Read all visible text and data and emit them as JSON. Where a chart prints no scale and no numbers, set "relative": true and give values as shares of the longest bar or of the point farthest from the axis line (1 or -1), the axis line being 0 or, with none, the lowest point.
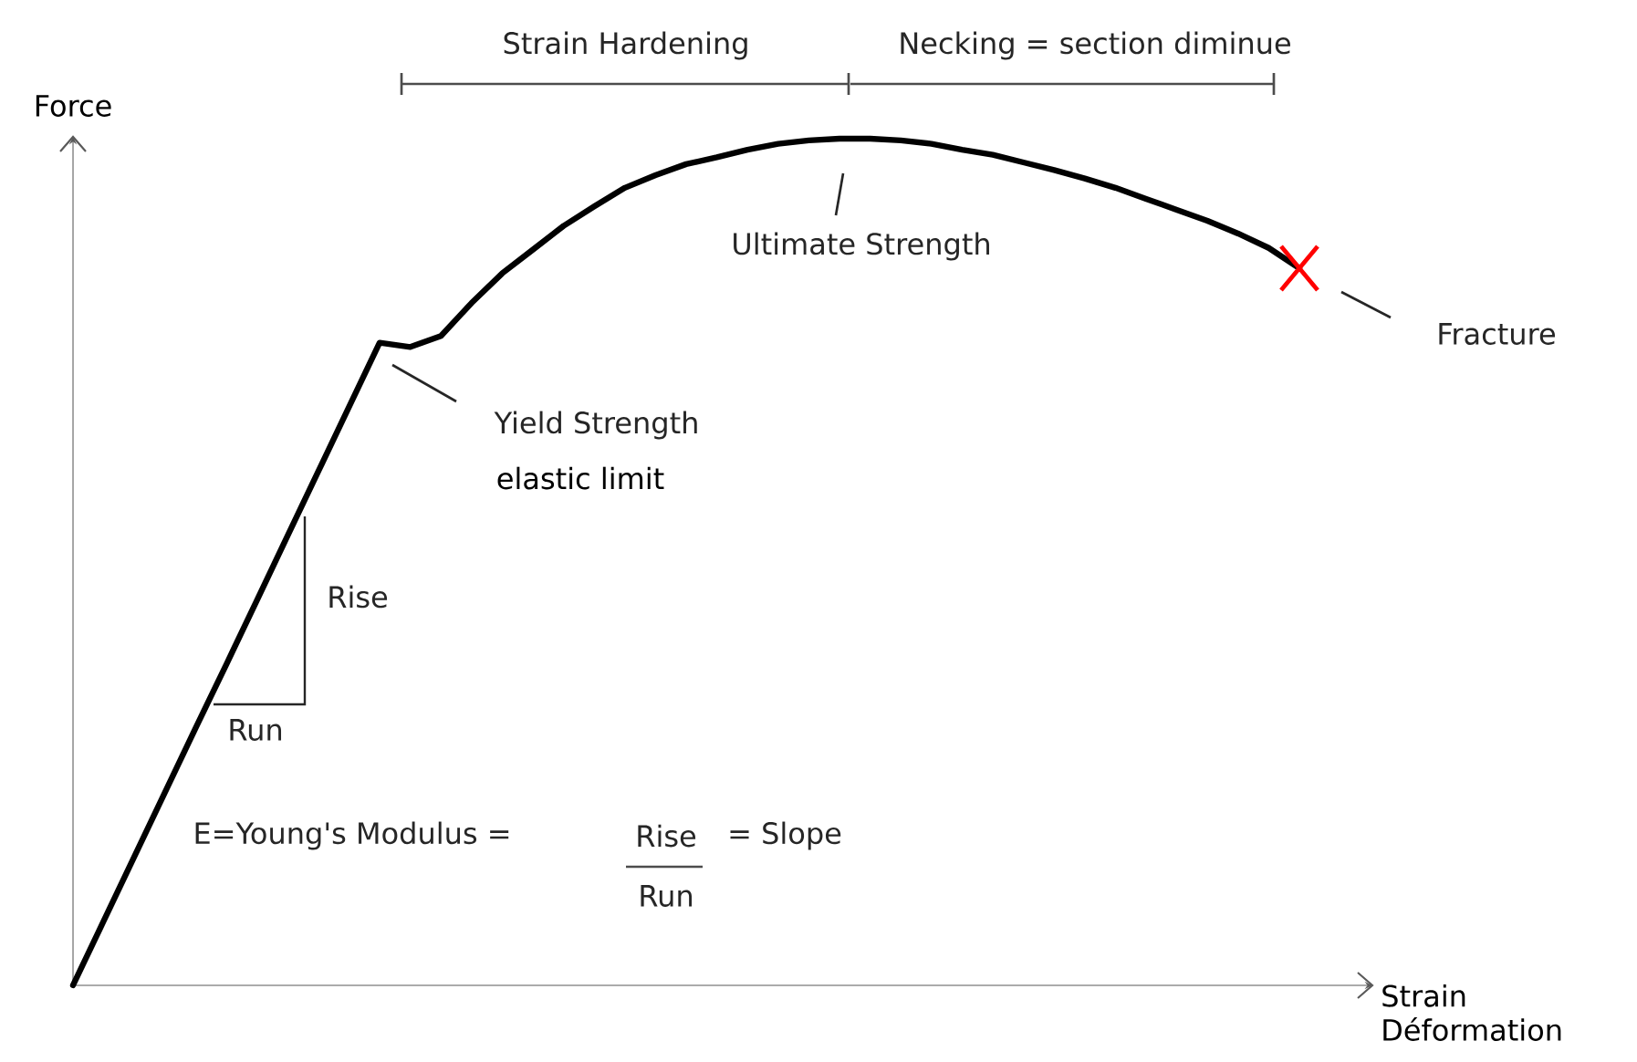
{
  "chart_data": {
    "type": "line",
    "relative": true,
    "xlabel": "Strain Déformation",
    "ylabel": "Force",
    "categories": [
      null,
      null,
      null,
      null,
      null,
      null,
      null,
      null,
      null,
      null,
      null,
      null,
      null,
      null,
      null,
      null,
      null,
      null,
      null,
      null,
      null,
      null,
      null,
      null,
      null,
      null,
      null,
      null,
      null,
      null,
      null,
      null,
      null,
      null,
      null,
      null,
      null,
      null,
      null,
      null,
      null
    ],
    "series": [
      {
        "color": "#000000",
        "values": [
          0,
          0.076,
          0.152,
          0.228,
          0.304,
          0.379,
          0.455,
          0.531,
          0.607,
          0.683,
          0.759,
          0.754,
          0.767,
          0.806,
          0.841,
          0.869,
          0.897,
          0.92,
          0.942,
          0.957,
          0.97,
          0.978,
          0.987,
          0.994,
          0.998,
          1,
          1,
          0.998,
          0.994,
          0.987,
          0.981,
          0.972,
          0.963,
          0.953,
          0.942,
          0.929,
          0.916,
          0.903,
          0.888,
          0.871,
          0.847
        ]
      }
    ],
    "annotations": [
      "Yield Strength",
      "elastic limit",
      "Ultimate Strength",
      "Fracture",
      "Rise",
      "Run",
      "E=Young's Modulus =",
      "Rise",
      "Run",
      "= Slope",
      "Strain Hardening",
      "Necking = section diminue"
    ]
  }
}
